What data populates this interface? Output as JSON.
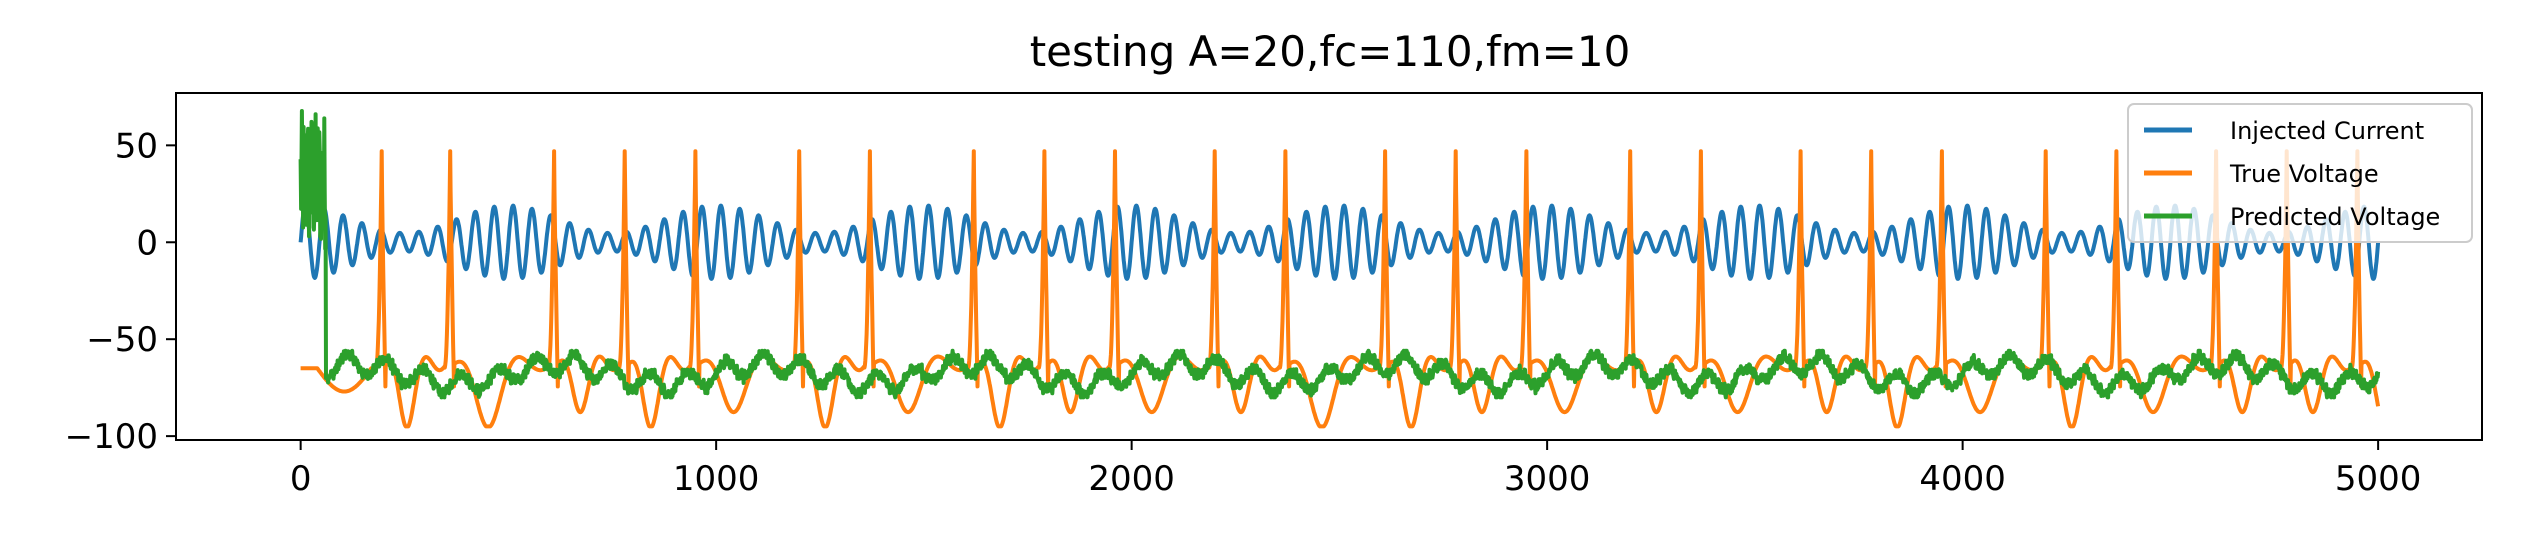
{
  "chart_data": {
    "type": "line",
    "title": "testing A=20,fc=110,fm=10",
    "xlabel": "",
    "ylabel": "",
    "xlim": [
      -300,
      5250
    ],
    "ylim": [
      -102,
      77
    ],
    "xticks": [
      0,
      1000,
      2000,
      3000,
      4000,
      5000
    ],
    "yticks": [
      -100,
      -50,
      0,
      50
    ],
    "xtick_labels": [
      "0",
      "1000",
      "2000",
      "3000",
      "4000",
      "5000"
    ],
    "ytick_labels": [
      "−100",
      "−50",
      "0",
      "50"
    ],
    "grid": false,
    "legend_position": "top-right",
    "x_range": [
      0,
      5000
    ],
    "series": [
      {
        "name": "Injected Current",
        "color": "#1f77b4",
        "model": "AM signal: A*(1+cos(2*pi*fm*t))*sin(2*pi*fc*t)/2, A=20, fc=110, fm=10",
        "amplitude": 20,
        "peak_range": [
          -20,
          20
        ]
      },
      {
        "name": "True Voltage",
        "color": "#ff7f0e",
        "resting": -65,
        "spike_peak": 47,
        "trough_min": -95,
        "spike_times": [
          195,
          360,
          610,
          780,
          950,
          1200,
          1370,
          1620,
          1790,
          1960,
          2200,
          2370,
          2610,
          2780,
          2950,
          3200,
          3370,
          3610,
          3780,
          3950,
          4200,
          4370,
          4610,
          4780,
          4950
        ]
      },
      {
        "name": "Predicted Voltage",
        "color": "#2ca02c",
        "initial_burst": {
          "x": [
            0,
            60
          ],
          "y_range": [
            -5,
            68
          ]
        },
        "baseline_range": [
          -80,
          -56
        ]
      }
    ]
  }
}
